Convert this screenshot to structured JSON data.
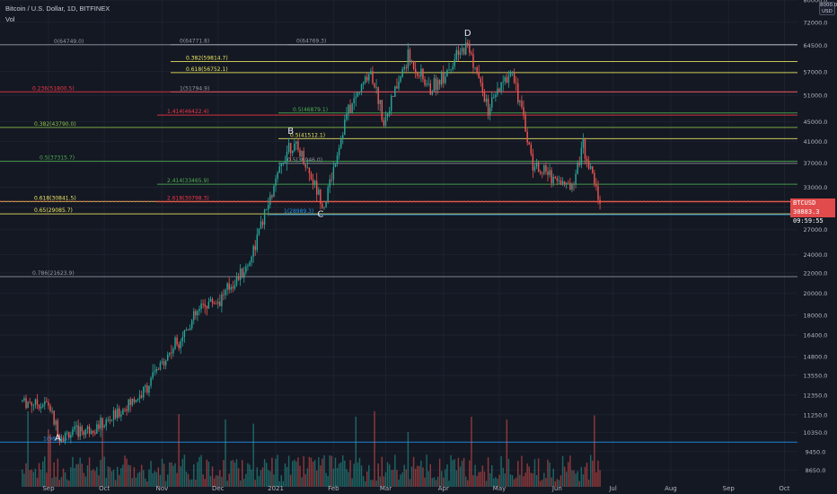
{
  "header": {
    "title": "Bitcoin / U.S. Dollar, 1D, BITFINEX",
    "indicator": "Vol"
  },
  "current_price": {
    "symbol": "BTCUSD",
    "price": "30883.3",
    "countdown": "09:59:55"
  },
  "currency_label": "8000.0 USD",
  "colors": {
    "background": "#141823",
    "up": "#26a69a",
    "down": "#ef5350",
    "grid": "#1e2230",
    "axis_text": "#b2b5be"
  },
  "chart_data": {
    "type": "candlestick",
    "title": "Bitcoin / U.S. Dollar, 1D, BITFINEX",
    "y_scale": "log",
    "ylim": [
      8000,
      80000
    ],
    "y_ticks": [
      8650.0,
      9450.0,
      10350.0,
      11250.0,
      12350.0,
      13550.0,
      14800.0,
      16400.0,
      18000.0,
      20000.0,
      22000.0,
      24000.0,
      27000.0,
      30000.0,
      33000.0,
      37000.0,
      41000.0,
      45000.0,
      51000.0,
      57000.0,
      64500.0,
      72000.0,
      80000.0
    ],
    "x_ticks": [
      "Sep",
      "Oct",
      "Nov",
      "Dec",
      "2021",
      "Feb",
      "Mar",
      "Apr",
      "May",
      "Jun",
      "Jul",
      "Aug",
      "Sep",
      "Oct"
    ],
    "price_path": [
      [
        "2020-08-18",
        12000
      ],
      [
        "2020-09-01",
        11800
      ],
      [
        "2020-09-07",
        10150
      ],
      [
        "2020-10-01",
        10750
      ],
      [
        "2020-10-21",
        12400
      ],
      [
        "2020-11-06",
        15300
      ],
      [
        "2020-11-24",
        19100
      ],
      [
        "2020-12-01",
        19300
      ],
      [
        "2020-12-17",
        22800
      ],
      [
        "2021-01-08",
        40500
      ],
      [
        "2021-01-14",
        39000
      ],
      [
        "2021-01-27",
        30200
      ],
      [
        "2021-02-08",
        46500
      ],
      [
        "2021-02-21",
        57500
      ],
      [
        "2021-02-28",
        45200
      ],
      [
        "2021-03-13",
        61000
      ],
      [
        "2021-03-25",
        52200
      ],
      [
        "2021-04-14",
        64800
      ],
      [
        "2021-04-25",
        47500
      ],
      [
        "2021-05-08",
        58000
      ],
      [
        "2021-05-19",
        36800
      ],
      [
        "2021-06-08",
        33000
      ],
      [
        "2021-06-15",
        40200
      ],
      [
        "2021-06-24",
        30883
      ]
    ],
    "points": [
      {
        "label": "A",
        "date": "2020-09-06",
        "price": 9950
      },
      {
        "label": "B",
        "date": "2021-01-09",
        "price": 42500
      },
      {
        "label": "C",
        "date": "2021-01-25",
        "price": 28700
      },
      {
        "label": "D",
        "date": "2021-04-14",
        "price": 67500
      }
    ],
    "levels": [
      {
        "label": "0(64749.0)",
        "price": 64749,
        "color": "#9598a1"
      },
      {
        "label": "0(64771.8)",
        "price": 64771.8,
        "color": "#9598a1"
      },
      {
        "label": "0(64769.3)",
        "price": 64769.3,
        "color": "#9598a1"
      },
      {
        "label": "0.382(59814.7)",
        "price": 59814.7,
        "color": "#e9e560"
      },
      {
        "label": "0.618(56752.1)",
        "price": 56752.1,
        "color": "#e9e560"
      },
      {
        "label": "1(51794.9)",
        "price": 51794.9,
        "color": "#9598a1"
      },
      {
        "label": "0.236(51800.5)",
        "price": 51800.5,
        "color": "#f23645"
      },
      {
        "label": "0.5(46879.1)",
        "price": 46879.1,
        "color": "#4caf50"
      },
      {
        "label": "1.414(46422.4)",
        "price": 46422.4,
        "color": "#f23645"
      },
      {
        "label": "0.382(43790.0)",
        "price": 43790,
        "color": "#8bc34a"
      },
      {
        "label": "0.5(41512.1)",
        "price": 41512.1,
        "color": "#e9e560"
      },
      {
        "label": "0.5(37315.7)",
        "price": 37315.7,
        "color": "#4caf50"
      },
      {
        "label": "0.5(36946.0)",
        "price": 36946,
        "color": "#9598a1"
      },
      {
        "label": "2.414(33465.9)",
        "price": 33465.9,
        "color": "#4caf50"
      },
      {
        "label": "0.618(30841.5)",
        "price": 30841.5,
        "color": "#e9e560"
      },
      {
        "label": "2.618(30798.3)",
        "price": 30798.3,
        "color": "#f23645"
      },
      {
        "label": "0.65(29085.7)",
        "price": 29085.7,
        "color": "#e9e560"
      },
      {
        "label": "1(28989.3)",
        "price": 28989.3,
        "color": "#2196f3"
      },
      {
        "label": "0.786(21623.9)",
        "price": 21623.9,
        "color": "#9598a1"
      },
      {
        "label": "1(9882.5)",
        "price": 9882.5,
        "color": "#2196f3"
      }
    ]
  }
}
